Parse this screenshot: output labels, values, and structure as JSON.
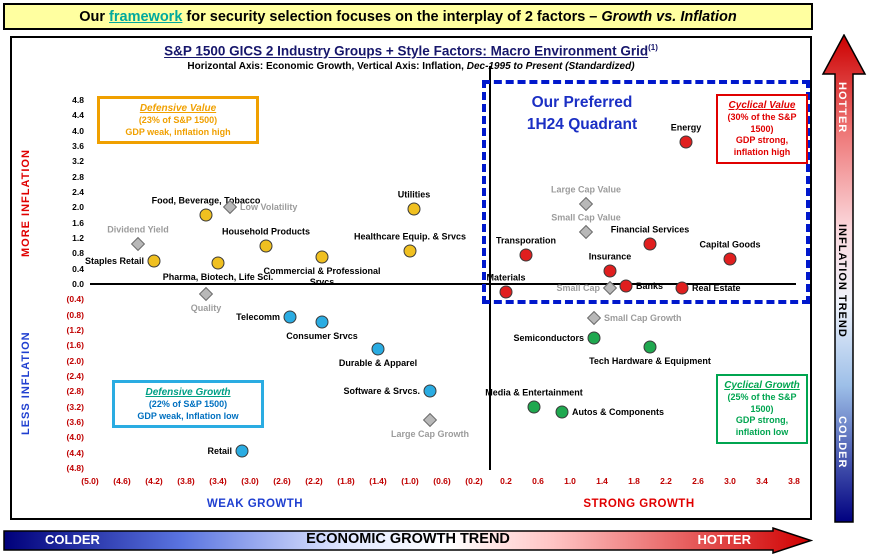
{
  "banner": {
    "prefix": "Our ",
    "link": "framework",
    "middle": " for security selection focuses on the interplay of 2 factors – ",
    "emphasis": "Growth vs. Inflation"
  },
  "trend_bars": {
    "bottom": {
      "left": "COLDER",
      "center": "ECONOMIC GROWTH TREND",
      "right": "HOTTER"
    },
    "right": {
      "top": "HOTTER",
      "center": "INFLATION TREND",
      "bottom": "COLDER"
    }
  },
  "colors": {
    "banner_bg": "#ffffa0",
    "banner_link": "#00a99d",
    "preferred_blue": "#1b2fc4",
    "dashed_border": "#0018cc",
    "defensive_value_accent": "#f0a000",
    "cyclical_value_accent": "#e00000",
    "defensive_growth_accent": "#2aace2",
    "cyclical_growth_accent": "#00a550"
  },
  "chart_data": {
    "type": "scatter",
    "title": "S&P 1500 GICS 2 Industry Groups + Style Factors: Macro Environment Grid",
    "title_footnote": "(1)",
    "subtitle_plain": "Horizontal Axis: Economic Growth, Vertical Axis: Inflation, ",
    "subtitle_italic": "Dec-1995 to Present (Standardized)",
    "x_axis": {
      "label_low": "WEAK GROWTH",
      "label_high": "STRONG GROWTH",
      "range": [
        -5.0,
        3.8
      ],
      "tick_step": 0.4,
      "ticks": [
        "(5.0)",
        "(4.6)",
        "(4.2)",
        "(3.8)",
        "(3.4)",
        "(3.0)",
        "(2.6)",
        "(2.2)",
        "(1.8)",
        "(1.4)",
        "(1.0)",
        "(0.6)",
        "(0.2)",
        "0.2",
        "0.6",
        "1.0",
        "1.4",
        "1.8",
        "2.2",
        "2.6",
        "3.0",
        "3.4",
        "3.8"
      ]
    },
    "y_axis": {
      "label_low": "LESS INFLATION",
      "label_high": "MORE INFLATION",
      "range": [
        -4.8,
        4.8
      ],
      "tick_step": 0.4,
      "ticks": [
        "4.8",
        "4.4",
        "4.0",
        "3.6",
        "3.2",
        "2.8",
        "2.4",
        "2.0",
        "1.6",
        "1.2",
        "0.8",
        "0.4",
        "0.0",
        "(0.4)",
        "(0.8)",
        "(1.2)",
        "(1.6)",
        "(2.0)",
        "(2.4)",
        "(2.8)",
        "(3.2)",
        "(3.6)",
        "(4.0)",
        "(4.4)",
        "(4.8)"
      ]
    },
    "quadrants": {
      "preferred": {
        "line1": "Our Preferred",
        "line2": "1H24 Quadrant"
      },
      "defensive_value": {
        "title": "Defensive Value",
        "share": "(23% of S&P 1500)",
        "description": "GDP weak, inflation high"
      },
      "cyclical_value": {
        "title": "Cyclical Value",
        "share": "(30% of the S&P 1500)",
        "description": "GDP strong, inflation high"
      },
      "defensive_growth": {
        "title": "Defensive Growth",
        "share": "(22% of S&P 1500)",
        "description": "GDP weak, Inflation low"
      },
      "cyclical_growth": {
        "title": "Cyclical Growth",
        "share": "(25% of the S&P 1500)",
        "description": "GDP strong, inflation low"
      }
    },
    "series": [
      {
        "name": "Defensive Value industry groups",
        "marker": "circle",
        "color": "#f0c020",
        "label_color": "#000000",
        "points": [
          {
            "label": "Staples Retail",
            "x": -4.2,
            "y": 0.6,
            "lp": "left"
          },
          {
            "label": "Food, Beverage, Tobacco",
            "x": -3.55,
            "y": 1.8,
            "lp": "above"
          },
          {
            "label": "Pharma, Biotech, Life Sci.",
            "x": -3.4,
            "y": 0.55,
            "lp": "below"
          },
          {
            "label": "Household Products",
            "x": -2.8,
            "y": 1.0,
            "lp": "above"
          },
          {
            "label": "Commercial & Professional Srvcs",
            "x": -2.1,
            "y": 0.7,
            "lp": "below",
            "wrap": 118
          },
          {
            "label": "Utilities",
            "x": -0.95,
            "y": 1.95,
            "lp": "above"
          },
          {
            "label": "Healthcare Equip. & Srvcs",
            "x": -1.0,
            "y": 0.85,
            "lp": "above"
          }
        ]
      },
      {
        "name": "Cyclical Value industry groups",
        "marker": "circle",
        "color": "#e01f1f",
        "label_color": "#000000",
        "points": [
          {
            "label": "Energy",
            "x": 2.45,
            "y": 3.7,
            "lp": "above"
          },
          {
            "label": "Transporation",
            "x": 0.45,
            "y": 0.75,
            "lp": "above"
          },
          {
            "label": "Materials",
            "x": 0.2,
            "y": -0.2,
            "lp": "above"
          },
          {
            "label": "Insurance",
            "x": 1.5,
            "y": 0.35,
            "lp": "above"
          },
          {
            "label": "Financial Services",
            "x": 2.0,
            "y": 1.05,
            "lp": "above"
          },
          {
            "label": "Banks",
            "x": 1.7,
            "y": -0.05,
            "lp": "right"
          },
          {
            "label": "Real Estate",
            "x": 2.4,
            "y": -0.1,
            "lp": "right"
          },
          {
            "label": "Capital Goods",
            "x": 3.0,
            "y": 0.65,
            "lp": "above"
          }
        ]
      },
      {
        "name": "Defensive Growth industry groups",
        "marker": "circle",
        "color": "#2aace2",
        "label_color": "#000000",
        "points": [
          {
            "label": "Telecomm",
            "x": -2.5,
            "y": -0.85,
            "lp": "left"
          },
          {
            "label": "Consumer Srvcs",
            "x": -2.1,
            "y": -1.0,
            "lp": "below"
          },
          {
            "label": "Durable & Apparel",
            "x": -1.4,
            "y": -1.7,
            "lp": "below"
          },
          {
            "label": "Software & Srvcs.",
            "x": -0.75,
            "y": -2.8,
            "lp": "left"
          },
          {
            "label": "Retail",
            "x": -3.1,
            "y": -4.35,
            "lp": "left"
          }
        ]
      },
      {
        "name": "Cyclical Growth industry groups",
        "marker": "circle",
        "color": "#1fa84f",
        "label_color": "#000000",
        "points": [
          {
            "label": "Semiconductors",
            "x": 1.3,
            "y": -1.4,
            "lp": "left"
          },
          {
            "label": "Tech Hardware & Equipment",
            "x": 2.0,
            "y": -1.65,
            "lp": "below"
          },
          {
            "label": "Media & Entertainment",
            "x": 0.55,
            "y": -3.2,
            "lp": "above"
          },
          {
            "label": "Autos & Components",
            "x": 0.9,
            "y": -3.35,
            "lp": "right"
          }
        ]
      },
      {
        "name": "Style Factors",
        "marker": "diamond",
        "color": "#b8b8b8",
        "label_color": "#9c9c9c",
        "points": [
          {
            "label": "Dividend Yield",
            "x": -4.4,
            "y": 1.05,
            "lp": "above"
          },
          {
            "label": "Low Volatility",
            "x": -3.25,
            "y": 2.0,
            "lp": "right"
          },
          {
            "label": "Quality",
            "x": -3.55,
            "y": -0.25,
            "lp": "below"
          },
          {
            "label": "Large Cap Value",
            "x": 1.2,
            "y": 2.1,
            "lp": "above"
          },
          {
            "label": "Small Cap Value",
            "x": 1.2,
            "y": 1.35,
            "lp": "above"
          },
          {
            "label": "Small Cap",
            "x": 1.5,
            "y": -0.1,
            "lp": "left"
          },
          {
            "label": "Small Cap Growth",
            "x": 1.3,
            "y": -0.9,
            "lp": "right"
          },
          {
            "label": "Large Cap Growth",
            "x": -0.75,
            "y": -3.55,
            "lp": "below"
          }
        ]
      }
    ]
  }
}
